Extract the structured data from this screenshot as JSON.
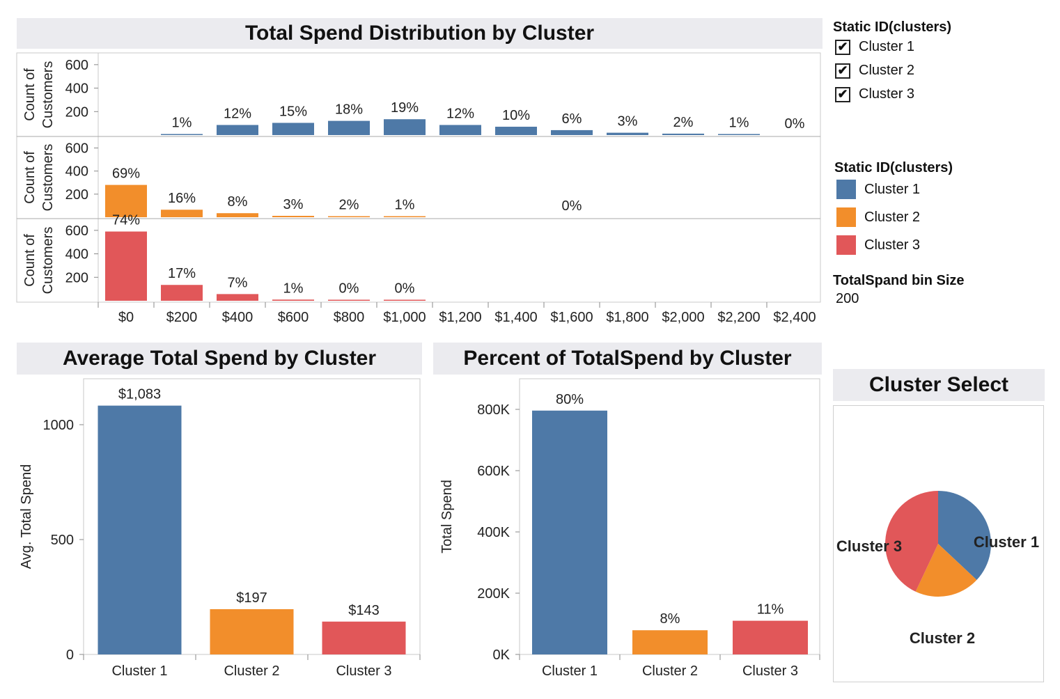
{
  "colors": {
    "cluster1": "#4e79a7",
    "cluster2": "#f28e2b",
    "cluster3": "#e15759"
  },
  "histogram": {
    "title": "Total Spend Distribution by Cluster",
    "y_axis_label_line1": "Count of",
    "y_axis_label_line2": "Customers",
    "y_ticks": [
      "600",
      "400",
      "200"
    ]
  },
  "avg_panel": {
    "title": "Average Total Spend by Cluster"
  },
  "pct_panel": {
    "title": "Percent of TotalSpend by Cluster"
  },
  "pie_panel": {
    "title": "Cluster Select"
  },
  "filter_legend": {
    "title": "Static ID(clusters)",
    "items": [
      {
        "label": "Cluster 1",
        "checked": true,
        "mark": "✔"
      },
      {
        "label": "Cluster 2",
        "checked": true,
        "mark": "✔"
      },
      {
        "label": "Cluster 3",
        "checked": true,
        "mark": "✔"
      }
    ]
  },
  "color_legend": {
    "title": "Static ID(clusters)",
    "items": [
      {
        "label": "Cluster 1",
        "color": "#4e79a7"
      },
      {
        "label": "Cluster 2",
        "color": "#f28e2b"
      },
      {
        "label": "Cluster 3",
        "color": "#e15759"
      }
    ]
  },
  "bin_param": {
    "label": "TotalSpand bin Size",
    "value": "200"
  },
  "chart_data": [
    {
      "type": "bar",
      "title": "Total Spend Distribution by Cluster",
      "ylabel": "Count of Customers",
      "ylim": [
        0,
        700
      ],
      "categories": [
        "$0",
        "$200",
        "$400",
        "$600",
        "$800",
        "$1,000",
        "$1,200",
        "$1,400",
        "$1,600",
        "$1,800",
        "$2,000",
        "$2,200",
        "$2,400"
      ],
      "series": [
        {
          "name": "Cluster 1",
          "color": "#4e79a7",
          "values": [
            0,
            5,
            86,
            104,
            121,
            135,
            86,
            71,
            42,
            20,
            12,
            7,
            0
          ],
          "labels": [
            "",
            "1%",
            "12%",
            "15%",
            "18%",
            "19%",
            "12%",
            "10%",
            "6%",
            "3%",
            "2%",
            "1%",
            "0%"
          ]
        },
        {
          "name": "Cluster 2",
          "color": "#f28e2b",
          "values": [
            280,
            65,
            35,
            12,
            8,
            3,
            0,
            0,
            0,
            0,
            0,
            0,
            0
          ],
          "labels": [
            "69%",
            "16%",
            "8%",
            "3%",
            "2%",
            "1%",
            "",
            "",
            "0%",
            "",
            "",
            "",
            ""
          ]
        },
        {
          "name": "Cluster 3",
          "color": "#e15759",
          "values": [
            590,
            135,
            57,
            10,
            2,
            1,
            0,
            0,
            0,
            0,
            0,
            0,
            0
          ],
          "labels": [
            "74%",
            "17%",
            "7%",
            "1%",
            "0%",
            "0%",
            "",
            "",
            "",
            "",
            "",
            "",
            ""
          ]
        }
      ]
    },
    {
      "type": "bar",
      "title": "Average Total Spend by Cluster",
      "ylabel": "Avg. Total Spend",
      "ylim": [
        0,
        1200
      ],
      "y_ticks": [
        0,
        500,
        1000
      ],
      "categories": [
        "Cluster 1",
        "Cluster 2",
        "Cluster 3"
      ],
      "values": [
        1083,
        197,
        143
      ],
      "labels": [
        "$1,083",
        "$197",
        "$143"
      ]
    },
    {
      "type": "bar",
      "title": "Percent of TotalSpend by Cluster",
      "ylabel": "Total Spend",
      "ylim": [
        0,
        900000
      ],
      "y_ticks": [
        0,
        200000,
        400000,
        600000,
        800000
      ],
      "y_tick_labels": [
        "0K",
        "200K",
        "400K",
        "600K",
        "800K"
      ],
      "categories": [
        "Cluster 1",
        "Cluster 2",
        "Cluster 3"
      ],
      "values": [
        796000,
        79000,
        110000
      ],
      "labels": [
        "80%",
        "8%",
        "11%"
      ]
    },
    {
      "type": "pie",
      "title": "Cluster Select",
      "categories": [
        "Cluster 1",
        "Cluster 2",
        "Cluster 3"
      ],
      "values": [
        37,
        20,
        43
      ]
    }
  ]
}
